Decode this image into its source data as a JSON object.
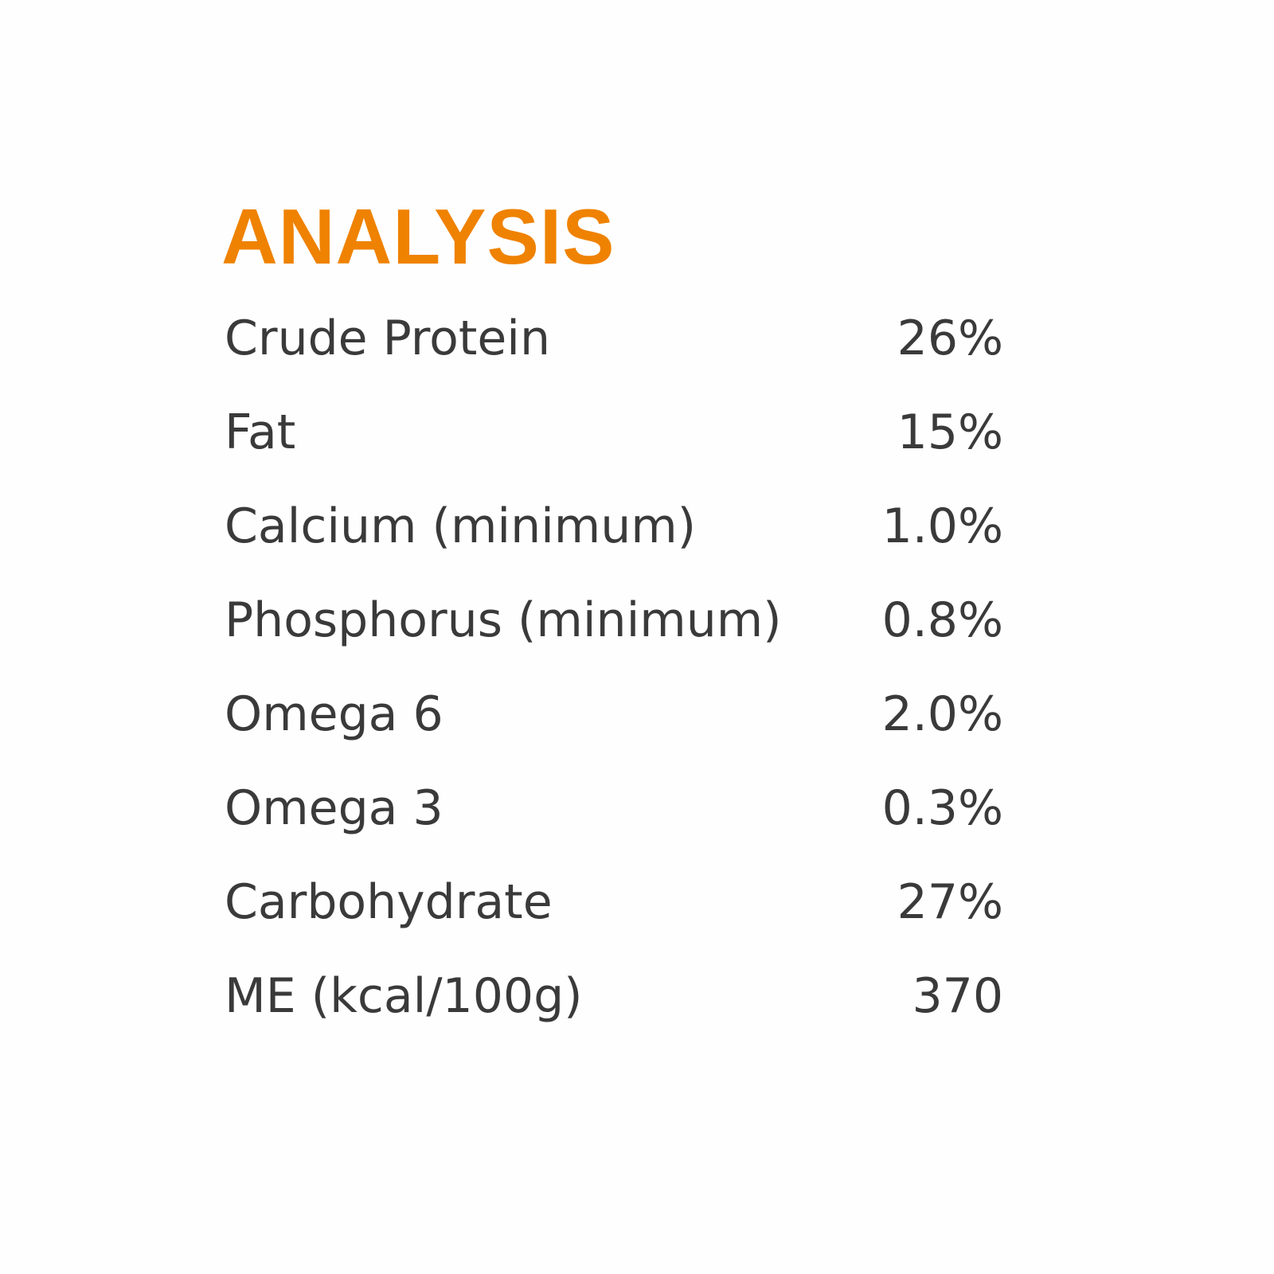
{
  "title": "ANALYSIS",
  "colors": {
    "title": "#ef8200",
    "text": "#3a3a3a"
  },
  "rows": [
    {
      "label": "Crude Protein",
      "value": "26%"
    },
    {
      "label": "Fat",
      "value": "15%"
    },
    {
      "label": "Calcium (minimum)",
      "value": "1.0%"
    },
    {
      "label": "Phosphorus (minimum)",
      "value": "0.8%"
    },
    {
      "label": "Omega 6",
      "value": "2.0%"
    },
    {
      "label": "Omega 3",
      "value": "0.3%"
    },
    {
      "label": "Carbohydrate",
      "value": "27%"
    },
    {
      "label": "ME (kcal/100g)",
      "value": "370"
    }
  ]
}
